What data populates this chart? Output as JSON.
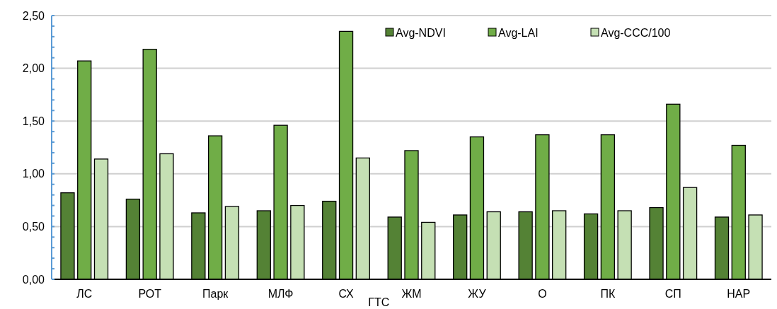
{
  "chart_data": {
    "type": "bar",
    "xlabel": "ГТС",
    "categories": [
      "ЛС",
      "РОТ",
      "Парк",
      "МЛФ",
      "СХ",
      "ЖМ",
      "ЖУ",
      "О",
      "ПК",
      "СП",
      "НАР"
    ],
    "series": [
      {
        "name": "Avg-NDVI",
        "color": "#548235",
        "values": [
          0.82,
          0.76,
          0.63,
          0.65,
          0.74,
          0.59,
          0.61,
          0.64,
          0.62,
          0.68,
          0.59
        ]
      },
      {
        "name": "Avg-LAI",
        "color": "#70ad47",
        "values": [
          2.07,
          2.18,
          1.36,
          1.46,
          2.35,
          1.22,
          1.35,
          1.37,
          1.37,
          1.66,
          1.27
        ]
      },
      {
        "name": "Avg-CCC/100",
        "color": "#c5e0b4",
        "values": [
          1.14,
          1.19,
          0.69,
          0.7,
          1.15,
          0.54,
          0.64,
          0.65,
          0.65,
          0.87,
          0.61
        ]
      }
    ],
    "ylim": [
      0,
      2.5
    ],
    "yticks": [
      {
        "value": 0,
        "label": "0,00"
      },
      {
        "value": 0.1,
        "label": null
      },
      {
        "value": 0.2,
        "label": null
      },
      {
        "value": 0.3,
        "label": null
      },
      {
        "value": 0.4,
        "label": null
      },
      {
        "value": 0.5,
        "label": "0,50"
      },
      {
        "value": 0.6,
        "label": null
      },
      {
        "value": 0.7,
        "label": null
      },
      {
        "value": 0.8,
        "label": null
      },
      {
        "value": 0.9,
        "label": null
      },
      {
        "value": 1,
        "label": "1,00"
      },
      {
        "value": 1.1,
        "label": null
      },
      {
        "value": 1.2,
        "label": null
      },
      {
        "value": 1.3,
        "label": null
      },
      {
        "value": 1.4,
        "label": null
      },
      {
        "value": 1.5,
        "label": "1,50"
      },
      {
        "value": 1.6,
        "label": null
      },
      {
        "value": 1.7,
        "label": null
      },
      {
        "value": 1.8,
        "label": null
      },
      {
        "value": 1.9,
        "label": null
      },
      {
        "value": 2,
        "label": "2,00"
      },
      {
        "value": 2.1,
        "label": null
      },
      {
        "value": 2.2,
        "label": null
      },
      {
        "value": 2.3,
        "label": null
      },
      {
        "value": 2.4,
        "label": null
      },
      {
        "value": 2.5,
        "label": "2,50"
      }
    ],
    "grid": "y",
    "legend": "top right"
  }
}
